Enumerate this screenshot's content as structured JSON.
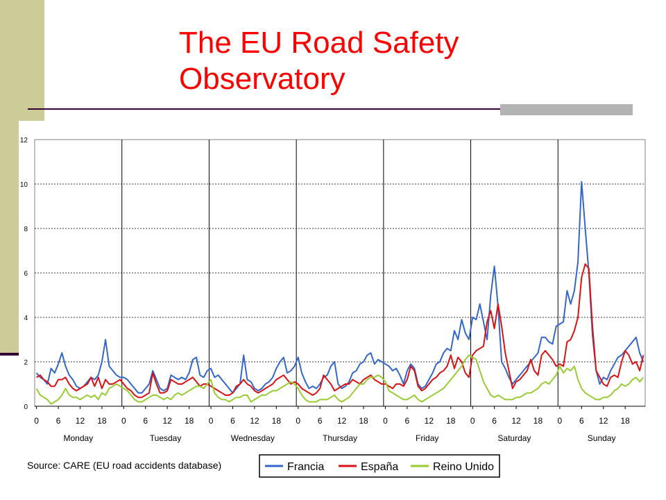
{
  "slide": {
    "title_line1": "The EU Road Safety",
    "title_line2": "Observatory"
  },
  "colors": {
    "title": "#ff0000",
    "sidebar": "#cccc99",
    "rule": "#330033",
    "rule_accent": "#b3b3b3"
  },
  "chart_data": {
    "type": "line",
    "title": "",
    "ylim": [
      0,
      12
    ],
    "y_ticks": [
      0,
      2,
      4,
      6,
      8,
      10,
      12
    ],
    "x_tick_labels": [
      "0",
      "6",
      "12",
      "18"
    ],
    "days": [
      "Monday",
      "Tuesday",
      "Wednesday",
      "Thursday",
      "Friday",
      "Saturday",
      "Sunday"
    ],
    "grid": "horizontal dashed, vertical solid at day boundaries",
    "source_note": "Source: CARE (EU road accidents database)",
    "legend_position": "bottom-right",
    "series": [
      {
        "name": "Francia",
        "color": "#3366cc",
        "values": [
          1.5,
          1.3,
          1.2,
          1.0,
          1.7,
          1.5,
          1.9,
          2.4,
          1.8,
          1.4,
          1.2,
          0.9,
          0.8,
          0.9,
          1.1,
          1.3,
          1.2,
          1.4,
          2.0,
          3.0,
          1.8,
          1.6,
          1.4,
          1.3,
          1.3,
          1.2,
          1.0,
          0.8,
          0.6,
          0.6,
          0.8,
          1.0,
          1.6,
          1.2,
          0.8,
          0.7,
          0.8,
          1.4,
          1.3,
          1.2,
          1.3,
          1.2,
          1.5,
          2.1,
          2.2,
          1.4,
          1.3,
          1.6,
          1.7,
          1.3,
          1.4,
          1.2,
          1.0,
          0.8,
          0.6,
          0.8,
          1.0,
          2.3,
          1.2,
          1.1,
          0.8,
          0.7,
          0.8,
          1.0,
          1.1,
          1.3,
          1.7,
          2.0,
          2.2,
          1.5,
          1.6,
          1.8,
          2.2,
          1.5,
          1.1,
          0.8,
          0.9,
          0.8,
          1.0,
          1.3,
          1.4,
          1.8,
          2.0,
          1.0,
          0.8,
          0.9,
          1.1,
          1.5,
          1.6,
          1.9,
          2.0,
          2.3,
          2.4,
          1.9,
          2.1,
          2.0,
          1.9,
          1.8,
          1.6,
          1.7,
          1.4,
          1.0,
          1.6,
          1.9,
          1.7,
          1.0,
          0.8,
          0.9,
          1.2,
          1.5,
          1.9,
          2.0,
          2.4,
          2.6,
          2.5,
          3.4,
          3.0,
          3.9,
          3.3,
          3.0,
          4.0,
          3.9,
          4.6,
          3.8,
          3.0,
          5.0,
          6.3,
          4.5,
          2.0,
          1.7,
          1.3,
          1.0,
          1.2,
          1.4,
          1.6,
          1.8,
          2.0,
          2.2,
          2.4,
          3.1,
          3.1,
          2.9,
          2.8,
          3.6,
          3.7,
          3.8,
          5.2,
          4.6,
          5.2,
          6.5,
          10.1,
          8.0,
          6.0,
          3.2,
          1.6,
          1.0,
          1.3,
          1.2,
          1.6,
          1.9,
          2.2,
          2.3,
          2.5,
          2.7,
          2.9,
          3.1,
          2.4,
          2.0
        ]
      },
      {
        "name": "España",
        "color": "#dd1111",
        "values": [
          1.3,
          1.4,
          1.2,
          1.1,
          0.9,
          0.9,
          1.2,
          1.2,
          1.3,
          1.0,
          0.8,
          0.7,
          0.8,
          0.9,
          1.0,
          1.3,
          0.9,
          1.3,
          0.8,
          1.2,
          1.0,
          1.0,
          1.1,
          1.2,
          1.0,
          0.8,
          0.7,
          0.5,
          0.4,
          0.4,
          0.5,
          0.6,
          1.5,
          1.0,
          0.6,
          0.6,
          0.7,
          1.2,
          1.1,
          1.0,
          1.0,
          1.1,
          1.2,
          1.3,
          1.1,
          0.9,
          1.0,
          1.0,
          0.9,
          0.8,
          0.7,
          0.6,
          0.5,
          0.5,
          0.6,
          0.9,
          1.0,
          1.2,
          1.0,
          0.9,
          0.7,
          0.6,
          0.7,
          0.8,
          0.9,
          1.0,
          1.2,
          1.3,
          1.4,
          1.2,
          1.0,
          1.1,
          1.0,
          0.8,
          0.7,
          0.6,
          0.5,
          0.6,
          0.8,
          1.4,
          1.2,
          1.0,
          0.7,
          0.8,
          0.9,
          1.0,
          1.0,
          1.2,
          1.1,
          1.0,
          1.2,
          1.3,
          1.4,
          1.2,
          1.1,
          1.0,
          1.0,
          0.9,
          0.8,
          1.0,
          1.0,
          0.9,
          1.2,
          1.8,
          1.6,
          0.9,
          0.7,
          0.8,
          1.0,
          1.2,
          1.3,
          1.5,
          1.6,
          1.8,
          2.3,
          1.7,
          2.2,
          2.0,
          1.5,
          1.3,
          2.3,
          2.5,
          2.6,
          2.7,
          3.8,
          4.3,
          3.5,
          4.6,
          3.6,
          2.4,
          1.6,
          0.8,
          1.1,
          1.2,
          1.4,
          1.6,
          2.1,
          1.6,
          1.4,
          2.3,
          2.5,
          2.3,
          2.1,
          1.8,
          1.9,
          1.8,
          2.9,
          3.0,
          3.4,
          4.0,
          5.8,
          6.4,
          6.2,
          3.6,
          1.6,
          1.3,
          1.0,
          0.9,
          1.3,
          1.4,
          1.3,
          2.0,
          2.5,
          2.3,
          1.9,
          2.0,
          1.6,
          2.3
        ]
      },
      {
        "name": "Reino Unido",
        "color": "#99cc33",
        "values": [
          0.8,
          0.5,
          0.4,
          0.3,
          0.1,
          0.2,
          0.3,
          0.5,
          0.8,
          0.5,
          0.4,
          0.4,
          0.3,
          0.4,
          0.5,
          0.4,
          0.5,
          0.3,
          0.6,
          0.5,
          0.8,
          0.9,
          1.0,
          0.9,
          0.8,
          0.7,
          0.5,
          0.3,
          0.2,
          0.2,
          0.3,
          0.4,
          0.5,
          0.5,
          0.4,
          0.3,
          0.4,
          0.3,
          0.5,
          0.6,
          0.5,
          0.6,
          0.7,
          0.8,
          0.9,
          0.9,
          0.8,
          1.0,
          1.2,
          0.6,
          0.4,
          0.3,
          0.3,
          0.2,
          0.3,
          0.4,
          0.4,
          0.5,
          0.5,
          0.2,
          0.3,
          0.4,
          0.5,
          0.5,
          0.6,
          0.7,
          0.7,
          0.8,
          0.9,
          1.0,
          1.1,
          1.0,
          0.8,
          0.5,
          0.3,
          0.2,
          0.2,
          0.2,
          0.3,
          0.3,
          0.3,
          0.4,
          0.5,
          0.3,
          0.2,
          0.3,
          0.4,
          0.6,
          0.8,
          1.0,
          1.0,
          1.2,
          1.3,
          1.3,
          1.4,
          1.3,
          1.1,
          0.7,
          0.6,
          0.5,
          0.4,
          0.3,
          0.3,
          0.4,
          0.5,
          0.3,
          0.2,
          0.3,
          0.4,
          0.5,
          0.6,
          0.7,
          0.8,
          1.0,
          1.2,
          1.4,
          1.6,
          1.8,
          2.1,
          2.3,
          2.2,
          2.1,
          1.6,
          1.1,
          0.8,
          0.5,
          0.4,
          0.5,
          0.4,
          0.3,
          0.3,
          0.3,
          0.4,
          0.4,
          0.5,
          0.6,
          0.6,
          0.7,
          0.8,
          1.0,
          1.1,
          1.0,
          1.2,
          1.4,
          1.8,
          1.5,
          1.7,
          1.6,
          1.8,
          1.2,
          0.8,
          0.6,
          0.5,
          0.4,
          0.3,
          0.3,
          0.4,
          0.4,
          0.5,
          0.7,
          0.8,
          1.0,
          0.9,
          1.0,
          1.2,
          1.3,
          1.1,
          1.3
        ]
      }
    ]
  }
}
